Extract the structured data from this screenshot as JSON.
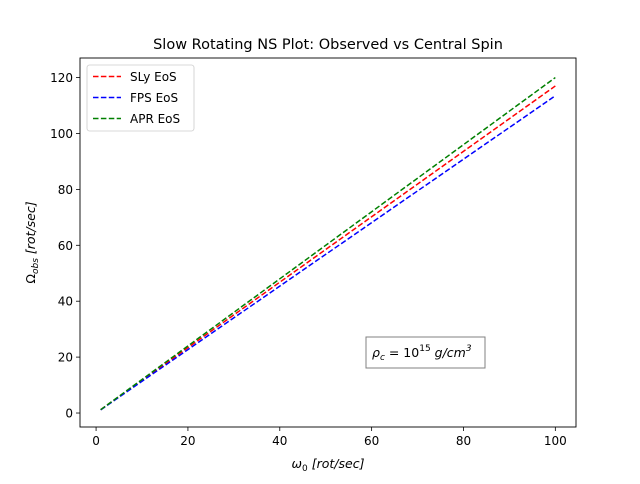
{
  "chart_data": {
    "type": "line",
    "title": "Slow Rotating NS Plot: Observed vs Central Spin",
    "xlabel": {
      "symbol": "ω",
      "sub": "0",
      "unit": " [rot/sec]"
    },
    "ylabel": {
      "symbol": "Ω",
      "sub": "obs",
      "unit": " [rot/sec]"
    },
    "xlim": [
      -3.5,
      104.5
    ],
    "ylim": [
      -5,
      127
    ],
    "xticks": [
      0,
      20,
      40,
      60,
      80,
      100
    ],
    "yticks": [
      0,
      20,
      40,
      60,
      80,
      100,
      120
    ],
    "legend_position": "upper-left",
    "annotation": {
      "text_prefix": "ρ",
      "sub": "c",
      "eq": " = 10",
      "sup": "15",
      "unit": " g/cm",
      "unit_sup": "3",
      "position": "lower-right"
    },
    "series": [
      {
        "name": "SLy EoS",
        "color": "#ff0000",
        "style": "dashed",
        "x": [
          1,
          100
        ],
        "y": [
          1.17,
          117
        ]
      },
      {
        "name": "FPS EoS",
        "color": "#0000ff",
        "style": "dashed",
        "x": [
          1,
          100
        ],
        "y": [
          1.135,
          113.5
        ]
      },
      {
        "name": "APR EoS",
        "color": "#008000",
        "style": "dashed",
        "x": [
          1,
          100
        ],
        "y": [
          1.2,
          120
        ]
      }
    ]
  }
}
